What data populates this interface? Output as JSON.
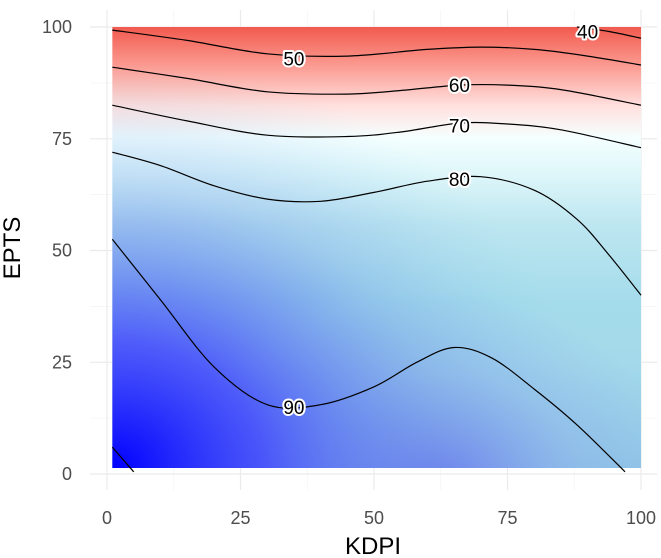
{
  "chart_data": {
    "type": "heatmap",
    "subtype": "filled-contour",
    "title": "",
    "xlabel": "KDPI",
    "ylabel": "EPTS",
    "xlim": [
      0,
      100
    ],
    "ylim": [
      0,
      100
    ],
    "x_ticks": [
      "0",
      "25",
      "50",
      "75",
      "100"
    ],
    "y_ticks": [
      "0",
      "25",
      "50",
      "75",
      "100"
    ],
    "grid": true,
    "legend": "none",
    "color_scale": {
      "low": "#ff0000",
      "mid": "#e0ffff",
      "high": "#0000ff",
      "description": "lower values red, mid values pale cyan, higher values blue"
    },
    "contour_levels": [
      40,
      50,
      60,
      70,
      80,
      90,
      100
    ],
    "contours": [
      {
        "level": 40,
        "label": "40",
        "label_at": [
          90,
          99
        ],
        "points": [
          [
            88,
            100
          ],
          [
            94,
            99
          ],
          [
            100,
            97.5
          ]
        ]
      },
      {
        "level": 50,
        "label": "50",
        "label_at": [
          35,
          93
        ],
        "points": [
          [
            1,
            99.3
          ],
          [
            15,
            97
          ],
          [
            30,
            94
          ],
          [
            45,
            93.5
          ],
          [
            60,
            95
          ],
          [
            70,
            95.5
          ],
          [
            80,
            95
          ],
          [
            90,
            93.5
          ],
          [
            100,
            91.5
          ]
        ]
      },
      {
        "level": 60,
        "label": "60",
        "label_at": [
          66,
          87
        ],
        "points": [
          [
            1,
            91
          ],
          [
            15,
            88.5
          ],
          [
            30,
            85.5
          ],
          [
            45,
            85
          ],
          [
            55,
            85.8
          ],
          [
            66,
            87
          ],
          [
            75,
            87
          ],
          [
            85,
            86
          ],
          [
            100,
            82.5
          ]
        ]
      },
      {
        "level": 70,
        "label": "70",
        "label_at": [
          66,
          78
        ],
        "points": [
          [
            1,
            82.5
          ],
          [
            15,
            79
          ],
          [
            30,
            75.8
          ],
          [
            45,
            75.5
          ],
          [
            55,
            76.5
          ],
          [
            66,
            78.5
          ],
          [
            75,
            78.3
          ],
          [
            85,
            77
          ],
          [
            100,
            73
          ]
        ]
      },
      {
        "level": 80,
        "label": "80",
        "label_at": [
          66,
          66
        ],
        "points": [
          [
            1,
            72
          ],
          [
            10,
            69
          ],
          [
            20,
            64.5
          ],
          [
            30,
            61.5
          ],
          [
            40,
            61
          ],
          [
            50,
            63
          ],
          [
            60,
            65.5
          ],
          [
            70,
            66.5
          ],
          [
            80,
            63.5
          ],
          [
            88,
            57
          ],
          [
            94,
            49
          ],
          [
            100,
            40
          ]
        ]
      },
      {
        "level": 90,
        "label": "90",
        "label_at": [
          35,
          15
        ],
        "points": [
          [
            1,
            52.5
          ],
          [
            10,
            39
          ],
          [
            20,
            24
          ],
          [
            30,
            15.5
          ],
          [
            40,
            15.5
          ],
          [
            50,
            19.5
          ],
          [
            58,
            25
          ],
          [
            65,
            28.3
          ],
          [
            72,
            26
          ],
          [
            80,
            19
          ],
          [
            88,
            11
          ],
          [
            97,
            0.5
          ]
        ]
      },
      {
        "level": 100,
        "label": "",
        "points": [
          [
            1,
            6
          ],
          [
            5,
            0.5
          ]
        ]
      }
    ]
  }
}
